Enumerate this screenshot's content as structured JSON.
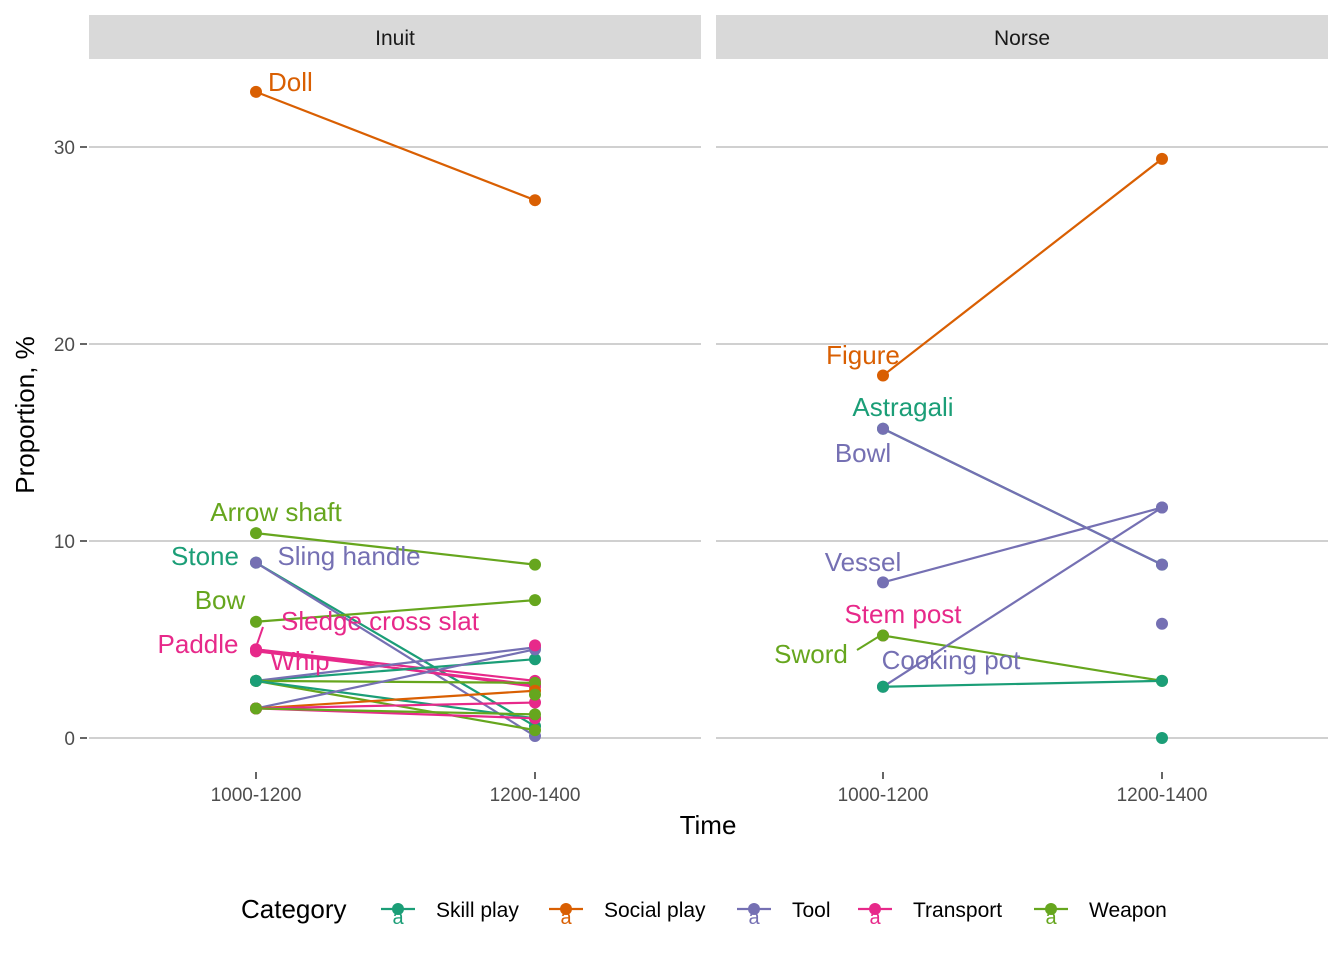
{
  "chart_data": {
    "type": "line",
    "xlabel": "Time",
    "ylabel": "Proportion, %",
    "x_categories": [
      "1000-1200",
      "1200-1400"
    ],
    "ylim": [
      -1.5,
      34.5
    ],
    "yticks": [
      0,
      10,
      20,
      30
    ],
    "grid": true,
    "legend": {
      "title": "Category",
      "placement": "bottom",
      "key_glyph": "a"
    },
    "categories": [
      {
        "name": "Skill play",
        "color": "#1B9E77"
      },
      {
        "name": "Social play",
        "color": "#D95F02"
      },
      {
        "name": "Tool",
        "color": "#7570B3"
      },
      {
        "name": "Transport",
        "color": "#E7298A"
      },
      {
        "name": "Weapon",
        "color": "#66A61E"
      }
    ],
    "facets": [
      {
        "title": "Inuit",
        "series": [
          {
            "category": "Social play",
            "label": "Doll",
            "values": [
              32.8,
              27.3
            ]
          },
          {
            "category": "Weapon",
            "label": "Arrow shaft",
            "values": [
              10.4,
              8.8
            ]
          },
          {
            "category": "Skill play",
            "label": "Stone",
            "values": [
              8.9,
              0.6
            ]
          },
          {
            "category": "Tool",
            "label": "Sling handle",
            "values": [
              8.9,
              0.1
            ]
          },
          {
            "category": "Weapon",
            "label": "Bow",
            "values": [
              5.9,
              7.0
            ]
          },
          {
            "category": "Transport",
            "label": "Sledge cross slat",
            "values": [
              4.5,
              2.6
            ]
          },
          {
            "category": "Transport",
            "label": "Paddle",
            "values": [
              4.5,
              2.9
            ]
          },
          {
            "category": "Transport",
            "label": "Whip",
            "values": [
              4.4,
              2.7
            ]
          },
          {
            "category": "Skill play",
            "label": "",
            "values": [
              2.9,
              4.0
            ]
          },
          {
            "category": "Tool",
            "label": "",
            "values": [
              2.9,
              4.6
            ]
          },
          {
            "category": "Weapon",
            "label": "",
            "values": [
              2.9,
              2.8
            ]
          },
          {
            "category": "Weapon",
            "label": "",
            "values": [
              2.9,
              0.4
            ]
          },
          {
            "category": "Skill play",
            "label": "",
            "values": [
              2.9,
              1.0
            ]
          },
          {
            "category": "Tool",
            "label": "",
            "values": [
              1.5,
              4.5
            ]
          },
          {
            "category": "Social play",
            "label": "",
            "values": [
              1.5,
              2.4
            ]
          },
          {
            "category": "Transport",
            "label": "",
            "values": [
              1.5,
              1.8
            ]
          },
          {
            "category": "Transport",
            "label": "",
            "values": [
              1.5,
              1.0
            ]
          },
          {
            "category": "Weapon",
            "label": "",
            "values": [
              1.5,
              1.2
            ]
          },
          {
            "category": "Transport",
            "label": "",
            "values": [
              null,
              4.7
            ]
          },
          {
            "category": "Weapon",
            "label": "",
            "values": [
              null,
              2.2
            ]
          }
        ]
      },
      {
        "title": "Norse",
        "series": [
          {
            "category": "Social play",
            "label": "Figure",
            "values": [
              18.4,
              29.4
            ]
          },
          {
            "category": "Skill play",
            "label": "Astragali",
            "values": [
              15.7,
              8.8
            ]
          },
          {
            "category": "Tool",
            "label": "Bowl",
            "values": [
              15.7,
              8.8
            ]
          },
          {
            "category": "Tool",
            "label": "Vessel",
            "values": [
              7.9,
              11.7
            ]
          },
          {
            "category": "Transport",
            "label": "Stem post",
            "values": [
              5.2,
              null
            ]
          },
          {
            "category": "Weapon",
            "label": "Sword",
            "values": [
              5.2,
              2.9
            ]
          },
          {
            "category": "Tool",
            "label": "Cooking pot",
            "values": [
              2.6,
              11.7
            ]
          },
          {
            "category": "Skill play",
            "label": "",
            "values": [
              2.6,
              2.9
            ]
          },
          {
            "category": "Tool",
            "label": "",
            "values": [
              null,
              5.8
            ]
          },
          {
            "category": "Skill play",
            "label": "",
            "values": [
              null,
              0.0
            ]
          }
        ]
      }
    ]
  }
}
